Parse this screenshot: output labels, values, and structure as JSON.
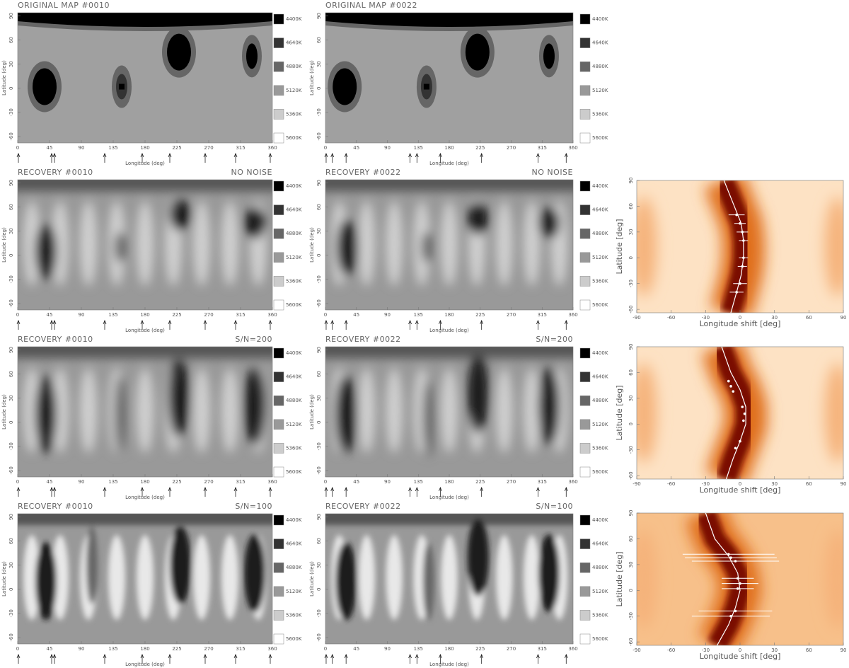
{
  "chart_data": [
    {
      "type": "map",
      "title": "ORIGINAL MAP #0010",
      "xlabel": "Longitude (deg)",
      "ylabel": "Latitude (deg)",
      "xlim": [
        0,
        360
      ],
      "ylim": [
        -68,
        94
      ],
      "xticks": [
        0,
        45,
        90,
        135,
        180,
        225,
        270,
        315,
        360
      ],
      "yticks": [
        90,
        60,
        30,
        0,
        -30,
        -60
      ],
      "colorbar": {
        "labels": [
          "4400K",
          "4640K",
          "4880K",
          "5120K",
          "5360K",
          "5600K"
        ],
        "colors": [
          "#000000",
          "#333333",
          "#666666",
          "#999999",
          "#cccccc",
          "#ffffff"
        ]
      },
      "arrows": [
        1,
        48,
        52,
        123,
        176,
        215,
        265,
        308,
        357
      ],
      "spots": [
        {
          "lon": 38,
          "lat": 2
        },
        {
          "lon": 147,
          "lat": 2
        },
        {
          "lon": 228,
          "lat": 45
        },
        {
          "lon": 331,
          "lat": 40
        }
      ]
    },
    {
      "type": "map",
      "title": "ORIGINAL MAP #0022",
      "xlabel": "Longitude (deg)",
      "ylabel": "Latitude (deg)",
      "xlim": [
        0,
        360
      ],
      "ylim": [
        -68,
        94
      ],
      "xticks": [
        0,
        45,
        90,
        135,
        180,
        225,
        270,
        315,
        360
      ],
      "yticks": [
        90,
        60,
        30,
        0,
        -30,
        -60
      ],
      "colorbar": {
        "labels": [
          "4400K",
          "4640K",
          "4880K",
          "5120K",
          "5360K",
          "5600K"
        ],
        "colors": [
          "#000000",
          "#333333",
          "#666666",
          "#999999",
          "#cccccc",
          "#ffffff"
        ]
      },
      "arrows": [
        1,
        10,
        30,
        123,
        133,
        167,
        227,
        309,
        350
      ],
      "spots": [
        {
          "lon": 28,
          "lat": 2
        },
        {
          "lon": 147,
          "lat": 2
        },
        {
          "lon": 221,
          "lat": 45
        },
        {
          "lon": 325,
          "lat": 40
        }
      ]
    },
    {
      "type": "recovery",
      "title": "RECOVERY #0010",
      "subtitle": "NO NOISE",
      "xlabel": "Longitude (deg)",
      "ylabel": "Latitude (deg)",
      "xlim": [
        0,
        360
      ],
      "ylim": [
        -68,
        94
      ],
      "xticks": [
        0,
        45,
        90,
        135,
        180,
        225,
        270,
        315,
        360
      ],
      "yticks": [
        90,
        60,
        30,
        0,
        -30,
        -60
      ],
      "colorbar": {
        "labels": [
          "4400K",
          "4640K",
          "4880K",
          "5120K",
          "5360K",
          "5600K"
        ],
        "colors": [
          "#000000",
          "#333333",
          "#666666",
          "#999999",
          "#cccccc",
          "#ffffff"
        ]
      },
      "arrows": [
        1,
        48,
        52,
        123,
        176,
        215,
        265,
        308,
        357
      ],
      "spots": [
        {
          "lon": 40,
          "lat": 5
        },
        {
          "lon": 145,
          "lat": 10
        },
        {
          "lon": 230,
          "lat": 50
        },
        {
          "lon": 335,
          "lat": 40
        }
      ]
    },
    {
      "type": "recovery",
      "title": "RECOVERY #0022",
      "subtitle": "NO NOISE",
      "xlabel": "Longitude (deg)",
      "ylabel": "Latitude (deg)",
      "xlim": [
        0,
        360
      ],
      "ylim": [
        -68,
        94
      ],
      "xticks": [
        0,
        45,
        90,
        135,
        180,
        225,
        270,
        315,
        360
      ],
      "yticks": [
        90,
        60,
        30,
        0,
        -30,
        -60
      ],
      "colorbar": {
        "labels": [
          "4400K",
          "4640K",
          "4880K",
          "5120K",
          "5360K",
          "5600K"
        ],
        "colors": [
          "#000000",
          "#333333",
          "#666666",
          "#999999",
          "#cccccc",
          "#ffffff"
        ]
      },
      "arrows": [
        1,
        10,
        30,
        123,
        133,
        167,
        227,
        309,
        350
      ],
      "spots": [
        {
          "lon": 32,
          "lat": 10
        },
        {
          "lon": 148,
          "lat": 10
        },
        {
          "lon": 222,
          "lat": 45
        },
        {
          "lon": 325,
          "lat": 40
        }
      ]
    },
    {
      "type": "recovery",
      "title": "RECOVERY #0010",
      "subtitle": "S/N=200",
      "xlabel": "Longitude (deg)",
      "ylabel": "Latitude (deg)",
      "xlim": [
        0,
        360
      ],
      "ylim": [
        -68,
        94
      ],
      "xticks": [
        0,
        45,
        90,
        135,
        180,
        225,
        270,
        315,
        360
      ],
      "yticks": [
        90,
        60,
        30,
        0,
        -30,
        -60
      ],
      "colorbar": {
        "labels": [
          "4400K",
          "4640K",
          "4880K",
          "5120K",
          "5360K",
          "5600K"
        ],
        "colors": [
          "#000000",
          "#333333",
          "#666666",
          "#999999",
          "#cccccc",
          "#ffffff"
        ]
      },
      "arrows": [
        1,
        48,
        52,
        123,
        176,
        215,
        265,
        308,
        357
      ],
      "spots": [
        {
          "lon": 40,
          "lat": 10
        },
        {
          "lon": 145,
          "lat": 10
        },
        {
          "lon": 228,
          "lat": 30
        },
        {
          "lon": 335,
          "lat": 20
        }
      ]
    },
    {
      "type": "recovery",
      "title": "RECOVERY #0022",
      "subtitle": "S/N=200",
      "xlabel": "Longitude (deg)",
      "ylabel": "Latitude (deg)",
      "xlim": [
        0,
        360
      ],
      "ylim": [
        -68,
        94
      ],
      "xticks": [
        0,
        45,
        90,
        135,
        180,
        225,
        270,
        315,
        360
      ],
      "yticks": [
        90,
        60,
        30,
        0,
        -30,
        -60
      ],
      "colorbar": {
        "labels": [
          "4400K",
          "4640K",
          "4880K",
          "5120K",
          "5360K",
          "5600K"
        ],
        "colors": [
          "#000000",
          "#333333",
          "#666666",
          "#999999",
          "#cccccc",
          "#ffffff"
        ]
      },
      "arrows": [
        1,
        10,
        30,
        123,
        133,
        167,
        227,
        309,
        350
      ],
      "spots": [
        {
          "lon": 30,
          "lat": 10
        },
        {
          "lon": 150,
          "lat": 5
        },
        {
          "lon": 222,
          "lat": 35
        },
        {
          "lon": 325,
          "lat": 20
        }
      ]
    },
    {
      "type": "recovery",
      "title": "RECOVERY #0010",
      "subtitle": "S/N=100",
      "xlabel": "Longitude (deg)",
      "ylabel": "Latitude (deg)",
      "xlim": [
        0,
        360
      ],
      "ylim": [
        -68,
        94
      ],
      "xticks": [
        0,
        45,
        90,
        135,
        180,
        225,
        270,
        315,
        360
      ],
      "yticks": [
        90,
        60,
        30,
        0,
        -30,
        -60
      ],
      "colorbar": {
        "labels": [
          "4400K",
          "4640K",
          "4880K",
          "5120K",
          "5360K",
          "5600K"
        ],
        "colors": [
          "#000000",
          "#333333",
          "#666666",
          "#999999",
          "#cccccc",
          "#ffffff"
        ]
      },
      "arrows": [
        1,
        48,
        52,
        123,
        176,
        215,
        265,
        308,
        357
      ],
      "spots": [
        {
          "lon": 40,
          "lat": 10
        },
        {
          "lon": 105,
          "lat": 30
        },
        {
          "lon": 230,
          "lat": 30
        },
        {
          "lon": 335,
          "lat": 20
        }
      ]
    },
    {
      "type": "recovery",
      "title": "RECOVERY #0022",
      "subtitle": "S/N=100",
      "xlabel": "Longitude (deg)",
      "ylabel": "Latitude (deg)",
      "xlim": [
        0,
        360
      ],
      "ylim": [
        -68,
        94
      ],
      "xticks": [
        0,
        45,
        90,
        135,
        180,
        225,
        270,
        315,
        360
      ],
      "yticks": [
        90,
        60,
        30,
        0,
        -30,
        -60
      ],
      "colorbar": {
        "labels": [
          "4400K",
          "4640K",
          "4880K",
          "5120K",
          "5360K",
          "5600K"
        ],
        "colors": [
          "#000000",
          "#333333",
          "#666666",
          "#999999",
          "#cccccc",
          "#ffffff"
        ]
      },
      "arrows": [
        1,
        10,
        30,
        123,
        133,
        167,
        227,
        309,
        350
      ],
      "spots": [
        {
          "lon": 30,
          "lat": 10
        },
        {
          "lon": 150,
          "lat": 10
        },
        {
          "lon": 222,
          "lat": 40
        },
        {
          "lon": 325,
          "lat": 20
        }
      ]
    },
    {
      "type": "profile",
      "xlabel": "Longitude shift [deg]",
      "ylabel": "Latitude [deg]",
      "xlim": [
        -90,
        90
      ],
      "ylim": [
        -64,
        90
      ],
      "xticks": [
        -90,
        -60,
        -30,
        0,
        30,
        60,
        90
      ],
      "yticks": [
        90,
        60,
        30,
        0,
        -30,
        -60
      ],
      "curve": {
        "x": [
          -8,
          -3,
          1,
          3,
          3,
          1,
          -5,
          -14
        ],
        "y": [
          -64,
          -40,
          -20,
          0,
          20,
          40,
          60,
          90
        ]
      },
      "points": {
        "x": [
          -3,
          0,
          2,
          3,
          3,
          2,
          0,
          -3
        ],
        "y": [
          50,
          40,
          30,
          20,
          0,
          -10,
          -30,
          -40
        ],
        "xerr": [
          7,
          5,
          5,
          4,
          4,
          4,
          6,
          6
        ]
      }
    },
    {
      "type": "profile",
      "xlabel": "Longitude shift [deg]",
      "ylabel": "Latitude [deg]",
      "xlim": [
        -90,
        90
      ],
      "ylim": [
        -64,
        90
      ],
      "xticks": [
        -90,
        -60,
        -30,
        0,
        30,
        60,
        90
      ],
      "yticks": [
        90,
        60,
        30,
        0,
        -30,
        -60
      ],
      "curve": {
        "x": [
          -12,
          -6,
          0,
          5,
          5,
          0,
          -8,
          -16
        ],
        "y": [
          -64,
          -40,
          -20,
          0,
          20,
          40,
          60,
          90
        ]
      },
      "points": {
        "x": [
          -10,
          -8,
          -6,
          2,
          4,
          3,
          0,
          -4
        ],
        "y": [
          50,
          44,
          38,
          20,
          12,
          4,
          -20,
          -28
        ]
      },
      "xerr_note": null
    },
    {
      "type": "profile",
      "xlabel": "Longitude shift [deg]",
      "ylabel": "Latitude [deg]",
      "xlim": [
        -90,
        90
      ],
      "ylim": [
        -64,
        90
      ],
      "xticks": [
        -90,
        -60,
        -30,
        0,
        30,
        60,
        90
      ],
      "yticks": [
        90,
        60,
        30,
        0,
        -30,
        -60
      ],
      "curve": {
        "x": [
          -20,
          -10,
          -4,
          0,
          -2,
          -10,
          -22,
          -30
        ],
        "y": [
          -64,
          -40,
          -20,
          0,
          20,
          40,
          60,
          90
        ]
      },
      "points": {
        "x": [
          -10,
          -8,
          -4,
          -2,
          0,
          -2,
          -4,
          -8
        ],
        "y": [
          42,
          38,
          34,
          14,
          8,
          2,
          -24,
          -30
        ],
        "xerr": [
          40,
          40,
          38,
          14,
          16,
          14,
          32,
          34
        ]
      }
    }
  ]
}
